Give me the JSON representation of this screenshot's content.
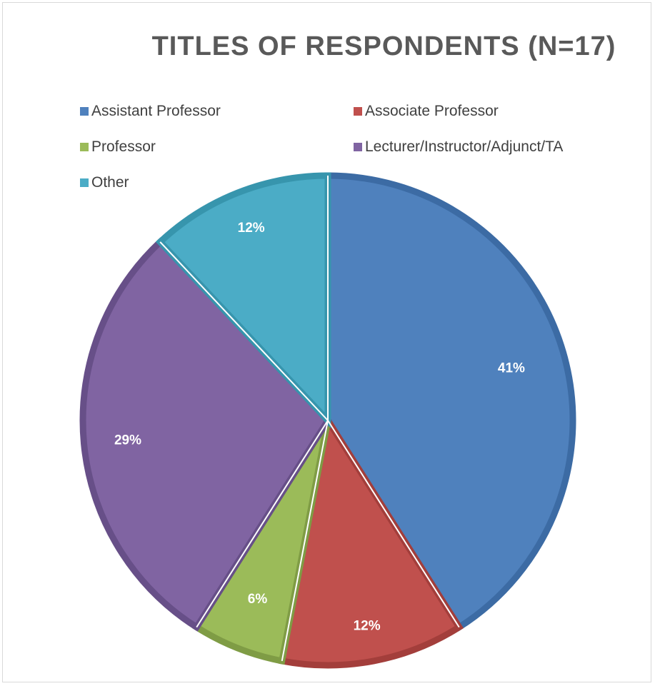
{
  "chart_data": {
    "type": "pie",
    "title": "TITLES OF RESPONDENTS (N=17)",
    "categories": [
      "Assistant Professor",
      "Associate Professor",
      "Professor",
      "Lecturer/Instructor/Adjunct/TA",
      "Other"
    ],
    "values": [
      41,
      12,
      6,
      29,
      12
    ],
    "data_labels": [
      "41%",
      "12%",
      "6%",
      "29%",
      "12%"
    ],
    "colors": [
      "#4f81bd",
      "#c0504d",
      "#9bbb59",
      "#8064a2",
      "#4bacc6"
    ],
    "border_colors": [
      "#3c6ba4",
      "#a33e3b",
      "#7f9c45",
      "#674f88",
      "#3795ad"
    ],
    "legend_position": "top",
    "start_angle": "12 o'clock, clockwise"
  }
}
